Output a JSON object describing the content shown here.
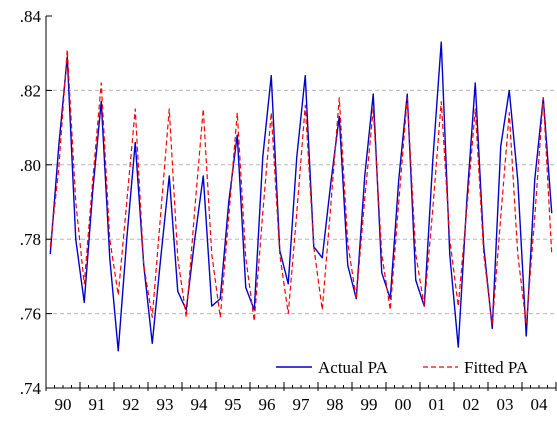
{
  "chart_data": {
    "type": "line",
    "title": "",
    "xlabel": "",
    "ylabel": "",
    "ylim": [
      0.74,
      0.84
    ],
    "y_ticks": [
      ".74",
      ".76",
      ".78",
      ".80",
      ".82",
      ".84"
    ],
    "y_tick_values": [
      0.74,
      0.76,
      0.78,
      0.8,
      0.82,
      0.84
    ],
    "x_ticks": [
      "90",
      "91",
      "92",
      "93",
      "94",
      "95",
      "96",
      "97",
      "98",
      "99",
      "00",
      "01",
      "02",
      "03",
      "04"
    ],
    "x_range": [
      1990.0,
      2005.0
    ],
    "frequency": "quarterly",
    "grid": "horizontal dashed",
    "legend_position": "bottom-right",
    "series": [
      {
        "name": "Actual PA",
        "color": "#0000cc",
        "style": "solid",
        "values": [
          0.776,
          0.805,
          0.829,
          0.78,
          0.763,
          0.793,
          0.817,
          0.775,
          0.75,
          0.78,
          0.806,
          0.773,
          0.752,
          0.775,
          0.797,
          0.766,
          0.761,
          0.78,
          0.797,
          0.762,
          0.764,
          0.79,
          0.808,
          0.767,
          0.761,
          0.802,
          0.824,
          0.777,
          0.768,
          0.802,
          0.824,
          0.778,
          0.775,
          0.795,
          0.813,
          0.773,
          0.764,
          0.797,
          0.819,
          0.771,
          0.764,
          0.796,
          0.819,
          0.769,
          0.762,
          0.801,
          0.833,
          0.776,
          0.751,
          0.79,
          0.822,
          0.778,
          0.756,
          0.805,
          0.82,
          0.796,
          0.754,
          0.796,
          0.818,
          0.787
        ]
      },
      {
        "name": "Fitted PA",
        "color": "#ff0000",
        "style": "dashed",
        "values": [
          0.778,
          0.799,
          0.831,
          0.79,
          0.768,
          0.796,
          0.822,
          0.78,
          0.765,
          0.79,
          0.815,
          0.773,
          0.759,
          0.787,
          0.815,
          0.775,
          0.759,
          0.788,
          0.815,
          0.776,
          0.759,
          0.786,
          0.814,
          0.775,
          0.758,
          0.787,
          0.814,
          0.776,
          0.76,
          0.787,
          0.816,
          0.778,
          0.761,
          0.789,
          0.818,
          0.779,
          0.764,
          0.791,
          0.815,
          0.776,
          0.761,
          0.79,
          0.818,
          0.776,
          0.762,
          0.788,
          0.817,
          0.78,
          0.762,
          0.788,
          0.815,
          0.776,
          0.757,
          0.786,
          0.814,
          0.776,
          0.757,
          0.786,
          0.818,
          0.776
        ]
      }
    ]
  }
}
